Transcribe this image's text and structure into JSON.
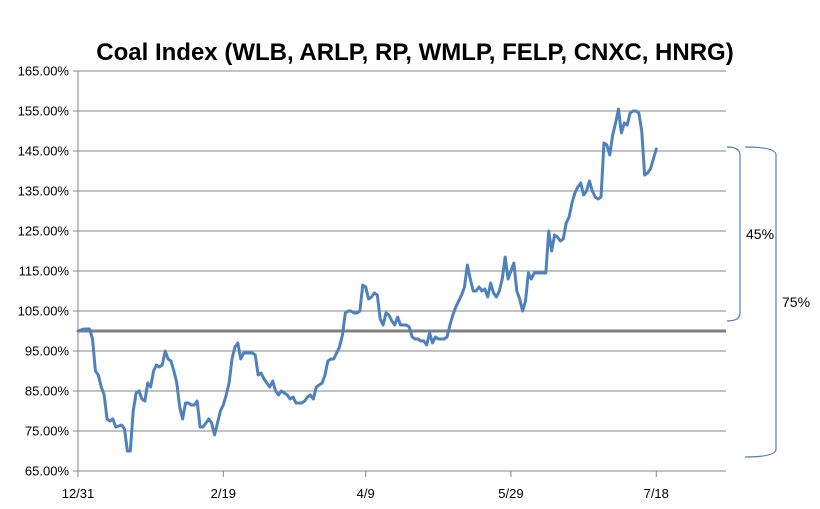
{
  "chart_data": {
    "type": "line",
    "title": "Coal Index (WLB, ARLP, RP, WMLP, FELP, CNXC, HNRG)",
    "xlabel": "",
    "ylabel": "",
    "ylim": [
      65,
      165
    ],
    "y_ticks": [
      65,
      75,
      85,
      95,
      105,
      115,
      125,
      135,
      145,
      155,
      165
    ],
    "y_tick_labels": [
      "65.00%",
      "75.00%",
      "85.00%",
      "95.00%",
      "105.00%",
      "115.00%",
      "125.00%",
      "135.00%",
      "145.00%",
      "155.00%",
      "165.00%"
    ],
    "x_range": [
      0,
      223
    ],
    "x_ticks": [
      {
        "day": 0,
        "label": "12/31"
      },
      {
        "day": 50,
        "label": "2/19"
      },
      {
        "day": 99,
        "label": "4/9"
      },
      {
        "day": 149,
        "label": "5/29"
      },
      {
        "day": 199,
        "label": "7/18"
      }
    ],
    "grid": true,
    "line_color": "#4f81bd",
    "baseline": {
      "value": 100,
      "color": "#7f7f7f"
    },
    "series": [
      {
        "values": [
          [
            0,
            100
          ],
          [
            2,
            100.5
          ],
          [
            4,
            100.5
          ],
          [
            5,
            98
          ],
          [
            6,
            90
          ],
          [
            7,
            89
          ],
          [
            8,
            86
          ],
          [
            9,
            84
          ],
          [
            10,
            78
          ],
          [
            11,
            77.5
          ],
          [
            12,
            78
          ],
          [
            13,
            76
          ],
          [
            15,
            76.5
          ],
          [
            16,
            75.5
          ],
          [
            17,
            70
          ],
          [
            18,
            70
          ],
          [
            19,
            80
          ],
          [
            20,
            84.5
          ],
          [
            21,
            85
          ],
          [
            22,
            83
          ],
          [
            23,
            82.5
          ],
          [
            24,
            87
          ],
          [
            25,
            86
          ],
          [
            26,
            90
          ],
          [
            27,
            91.5
          ],
          [
            28,
            91
          ],
          [
            29,
            91.5
          ],
          [
            30,
            95
          ],
          [
            31,
            93
          ],
          [
            32,
            92.5
          ],
          [
            33,
            90
          ],
          [
            34,
            87
          ],
          [
            35,
            81
          ],
          [
            36,
            78
          ],
          [
            37,
            82
          ],
          [
            38,
            82
          ],
          [
            39,
            81.5
          ],
          [
            40,
            81.5
          ],
          [
            41,
            82.5
          ],
          [
            42,
            76
          ],
          [
            43,
            76
          ],
          [
            44,
            77
          ],
          [
            45,
            78
          ],
          [
            46,
            77
          ],
          [
            47,
            74
          ],
          [
            48,
            77
          ],
          [
            49,
            80
          ],
          [
            50,
            81.5
          ],
          [
            51,
            84
          ],
          [
            52,
            87
          ],
          [
            53,
            93
          ],
          [
            54,
            96
          ],
          [
            55,
            97
          ],
          [
            56,
            93
          ],
          [
            57,
            94.5
          ],
          [
            58,
            94.5
          ],
          [
            60,
            94.5
          ],
          [
            61,
            94
          ],
          [
            62,
            89
          ],
          [
            63,
            89.5
          ],
          [
            64,
            88
          ],
          [
            65,
            87
          ],
          [
            66,
            86
          ],
          [
            67,
            87.5
          ],
          [
            68,
            85
          ],
          [
            69,
            84
          ],
          [
            70,
            85
          ],
          [
            71,
            84.5
          ],
          [
            72,
            84
          ],
          [
            73,
            83
          ],
          [
            74,
            83.5
          ],
          [
            75,
            82
          ],
          [
            76,
            82
          ],
          [
            77,
            82
          ],
          [
            78,
            82.5
          ],
          [
            79,
            83.5
          ],
          [
            80,
            84
          ],
          [
            81,
            83
          ],
          [
            82,
            86
          ],
          [
            83,
            86.5
          ],
          [
            84,
            87
          ],
          [
            85,
            89
          ],
          [
            86,
            92.5
          ],
          [
            87,
            93
          ],
          [
            88,
            93
          ],
          [
            89,
            94.5
          ],
          [
            90,
            96
          ],
          [
            91,
            99
          ],
          [
            92,
            104.5
          ],
          [
            93,
            105
          ],
          [
            94,
            105
          ],
          [
            95,
            104.5
          ],
          [
            96,
            104.5
          ],
          [
            97,
            105
          ],
          [
            98,
            111.5
          ],
          [
            99,
            111
          ],
          [
            100,
            108
          ],
          [
            101,
            108.5
          ],
          [
            102,
            109.5
          ],
          [
            103,
            109
          ],
          [
            104,
            103
          ],
          [
            105,
            101.5
          ],
          [
            106,
            104.5
          ],
          [
            107,
            104
          ],
          [
            108,
            102.5
          ],
          [
            109,
            101.5
          ],
          [
            110,
            103.5
          ],
          [
            111,
            101.5
          ],
          [
            112,
            101.5
          ],
          [
            113,
            101.5
          ],
          [
            114,
            101
          ],
          [
            115,
            98.5
          ],
          [
            116,
            98
          ],
          [
            117,
            98
          ],
          [
            118,
            97.5
          ],
          [
            119,
            97.5
          ],
          [
            120,
            96.5
          ],
          [
            121,
            99.5
          ],
          [
            122,
            97
          ],
          [
            123,
            98.5
          ],
          [
            124,
            98
          ],
          [
            125,
            98
          ],
          [
            126,
            98
          ],
          [
            127,
            98.5
          ],
          [
            128,
            101.5
          ],
          [
            129,
            104
          ],
          [
            130,
            106
          ],
          [
            131,
            107.5
          ],
          [
            132,
            109
          ],
          [
            133,
            111
          ],
          [
            134,
            116.5
          ],
          [
            135,
            113
          ],
          [
            136,
            110
          ],
          [
            137,
            110
          ],
          [
            138,
            111
          ],
          [
            139,
            110
          ],
          [
            140,
            110.5
          ],
          [
            141,
            108.5
          ],
          [
            142,
            112
          ],
          [
            143,
            109.5
          ],
          [
            144,
            108.5
          ],
          [
            145,
            110
          ],
          [
            146,
            113
          ],
          [
            147,
            118.5
          ],
          [
            148,
            113
          ],
          [
            149,
            115
          ],
          [
            150,
            117
          ],
          [
            151,
            110
          ],
          [
            152,
            108
          ],
          [
            153,
            105
          ],
          [
            154,
            107.5
          ],
          [
            155,
            114.5
          ],
          [
            156,
            113
          ],
          [
            157,
            114.5
          ],
          [
            158,
            114.5
          ],
          [
            159,
            114.5
          ],
          [
            160,
            114.5
          ],
          [
            161,
            114.5
          ],
          [
            162,
            125
          ],
          [
            163,
            120
          ],
          [
            164,
            124
          ],
          [
            165,
            123.5
          ],
          [
            166,
            122.5
          ],
          [
            167,
            123
          ],
          [
            168,
            127
          ],
          [
            169,
            128.5
          ],
          [
            170,
            132
          ],
          [
            171,
            134.5
          ],
          [
            172,
            136
          ],
          [
            173,
            137
          ],
          [
            174,
            134
          ],
          [
            175,
            135
          ],
          [
            176,
            137.5
          ],
          [
            177,
            135
          ],
          [
            178,
            133.5
          ],
          [
            179,
            133
          ],
          [
            180,
            133.5
          ],
          [
            181,
            147
          ],
          [
            182,
            146.5
          ],
          [
            183,
            144
          ],
          [
            184,
            149
          ],
          [
            185,
            152
          ],
          [
            186,
            155.5
          ],
          [
            187,
            149.5
          ],
          [
            188,
            152
          ],
          [
            189,
            151.5
          ],
          [
            190,
            154.5
          ],
          [
            191,
            155
          ],
          [
            192,
            155
          ],
          [
            193,
            154.5
          ],
          [
            194,
            150
          ],
          [
            195,
            139
          ],
          [
            196,
            139.5
          ],
          [
            197,
            140.5
          ],
          [
            198,
            143
          ],
          [
            199,
            145.5
          ]
        ]
      }
    ],
    "annotations": [
      {
        "label": "45%",
        "from": 102.5,
        "to": 146
      },
      {
        "label": "75%",
        "from": 68.5,
        "to": 146
      }
    ]
  }
}
